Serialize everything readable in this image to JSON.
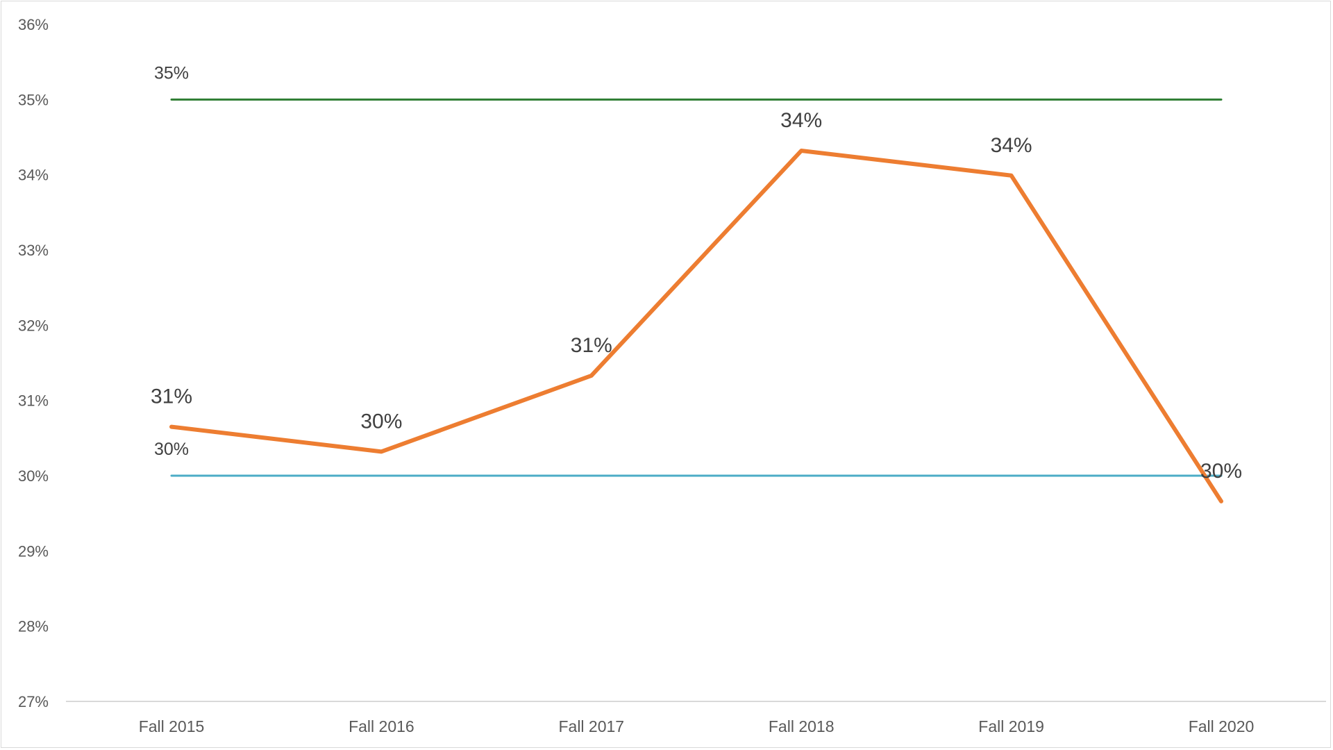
{
  "chart_data": {
    "type": "line",
    "categories": [
      "Fall 2015",
      "Fall 2016",
      "Fall 2017",
      "Fall 2018",
      "Fall 2019",
      "Fall 2020"
    ],
    "ylim": [
      0.27,
      0.36
    ],
    "yticks": [
      "27%",
      "28%",
      "29%",
      "30%",
      "31%",
      "32%",
      "33%",
      "34%",
      "35%",
      "36%"
    ],
    "grid": false,
    "legend": "none",
    "series": [
      {
        "values": [
          0.3065,
          0.3032,
          0.3133,
          0.3432,
          0.3399,
          0.2966
        ],
        "labels": [
          "31%",
          "30%",
          "31%",
          "34%",
          "34%",
          "30%"
        ],
        "color": "#ED7D31"
      },
      {
        "values": [
          0.35,
          0.35,
          0.35,
          0.35,
          0.35,
          0.35
        ],
        "labels": [
          "35%"
        ],
        "color": "#2E7D32"
      },
      {
        "values": [
          0.3,
          0.3,
          0.3,
          0.3,
          0.3,
          0.3
        ],
        "labels": [
          "30%"
        ],
        "color": "#4BACC6"
      }
    ]
  }
}
